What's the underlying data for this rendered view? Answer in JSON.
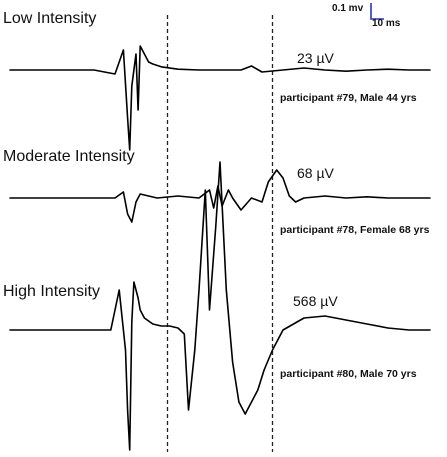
{
  "chart_data": {
    "type": "line",
    "description_units": {
      "x": "ms",
      "y": "mV"
    },
    "scale_bar": {
      "amplitude_label": "0.1 mv",
      "time_label": "10 ms"
    },
    "analysis_window_ms": [
      75,
      125
    ],
    "panels": [
      {
        "title": "Low Intensity",
        "amplitude_label": "23 µV",
        "participant_label": "participant #79, Male 44 yrs",
        "trace": {
          "x": [
            0,
            40,
            50,
            54,
            56,
            57,
            58,
            60,
            61,
            62,
            64,
            66,
            68,
            72,
            80,
            90,
            110,
            115,
            120,
            130,
            140,
            150,
            160,
            170,
            180,
            190,
            200
          ],
          "y": [
            0,
            0.0,
            -0.01,
            0.05,
            -0.12,
            -0.2,
            -0.04,
            0.04,
            -0.1,
            0.06,
            0.04,
            0.02,
            0.015,
            0.008,
            0.002,
            0.0,
            0.0,
            0.01,
            -0.005,
            0.0,
            0.005,
            0.0,
            -0.003,
            0.0,
            0.002,
            0.0,
            0.0
          ]
        }
      },
      {
        "title": "Moderate Intensity",
        "amplitude_label": "68 µV",
        "participant_label": "participant #78, Female 68 yrs",
        "trace": {
          "x": [
            0,
            40,
            50,
            54,
            56,
            58,
            60,
            62,
            66,
            70,
            80,
            90,
            95,
            97,
            99,
            101,
            104,
            106,
            110,
            115,
            120,
            123,
            127,
            130,
            133,
            136,
            140,
            150,
            160,
            170,
            180,
            190,
            200
          ],
          "y": [
            0,
            0.0,
            0.0,
            0.015,
            -0.04,
            -0.06,
            -0.01,
            0.01,
            0.005,
            0.0,
            0.005,
            0.0,
            0.02,
            -0.025,
            0.03,
            -0.02,
            0.02,
            0.0,
            -0.03,
            0.0,
            -0.01,
            0.04,
            0.07,
            0.05,
            0.005,
            -0.01,
            0.0,
            0.005,
            0.0,
            0.003,
            0.0,
            0.0,
            0.0
          ]
        }
      },
      {
        "title": "High Intensity",
        "amplitude_label": "568 µV",
        "participant_label": "participant #80, Male 70 yrs",
        "trace": {
          "x": [
            0,
            40,
            48,
            52,
            55,
            56,
            57,
            58,
            59,
            60,
            61,
            62,
            64,
            68,
            72,
            76,
            80,
            83,
            85,
            88,
            90,
            93,
            95,
            98,
            100,
            103,
            106,
            109,
            112,
            115,
            118,
            121,
            125,
            130,
            140,
            150,
            160,
            170,
            180,
            190,
            200
          ],
          "y": [
            0,
            0.0,
            0.0,
            0.1,
            -0.05,
            -0.2,
            -0.3,
            0.02,
            0.12,
            0.1,
            0.08,
            0.05,
            0.03,
            0.015,
            0.01,
            0.01,
            0.005,
            -0.01,
            -0.2,
            -0.05,
            0.1,
            0.35,
            0.05,
            0.26,
            0.42,
            0.1,
            -0.08,
            -0.18,
            -0.21,
            -0.18,
            -0.15,
            -0.1,
            -0.05,
            0.0,
            0.03,
            0.035,
            0.025,
            0.015,
            0.005,
            0.0,
            0.0
          ]
        }
      }
    ]
  }
}
